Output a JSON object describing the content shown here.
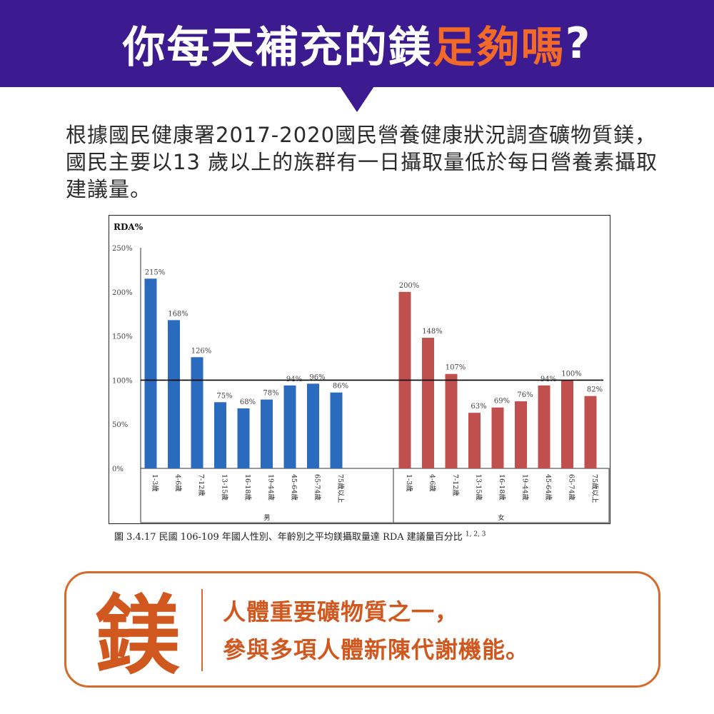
{
  "header": {
    "title_main": "你每天補充的鎂",
    "title_highlight": "足夠嗎",
    "title_mark": "?"
  },
  "intro_text": "根據國民健康署2017-2020國民營養健康狀況調查礦物質鎂，國民主要以13 歲以上的族群有一日攝取量低於每日營養素攝取建議量。",
  "colors": {
    "banner": "#3c1a8f",
    "highlight": "#f36a28",
    "male_bar": "#2b6bbd",
    "female_bar": "#c0504d",
    "accent": "#d0581e"
  },
  "chart_data": {
    "type": "bar",
    "ylabel": "RDA%",
    "ylim": [
      0,
      250
    ],
    "yticks": [
      "0%",
      "50%",
      "100%",
      "150%",
      "200%",
      "250%"
    ],
    "reference_line": 100,
    "groups": [
      "男",
      "女"
    ],
    "categories": [
      "1-3歲",
      "4-6歲",
      "7-12歲",
      "13-15歲",
      "16-18歲",
      "19-44歲",
      "45-64歲",
      "65-74歲",
      "75歲以上"
    ],
    "series": [
      {
        "name": "男",
        "values": [
          215,
          168,
          126,
          75,
          68,
          78,
          94,
          96,
          86
        ],
        "labels": [
          "215%",
          "168%",
          "126%",
          "75%",
          "68%",
          "78%",
          "94%",
          "96%",
          "86%"
        ]
      },
      {
        "name": "女",
        "values": [
          200,
          148,
          107,
          63,
          69,
          76,
          94,
          100,
          82
        ],
        "labels": [
          "200%",
          "148%",
          "107%",
          "63%",
          "69%",
          "76%",
          "94%",
          "100%",
          "82%"
        ]
      }
    ],
    "caption": "圖 3.4.17 民國 106-109 年國人性別、年齡別之平均鎂攝取量達 RDA 建議量百分比",
    "caption_refs": "1, 2, 3"
  },
  "note": {
    "glyph": "鎂",
    "line1": "人體重要礦物質之一，",
    "line2": "參與多項人體新陳代謝機能。"
  }
}
